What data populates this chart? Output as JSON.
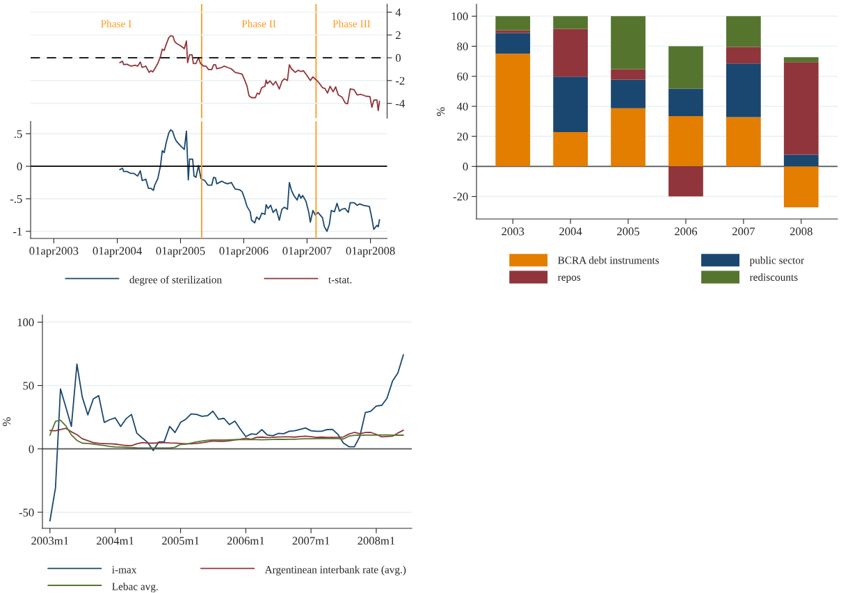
{
  "chart_data": [
    {
      "type": "line",
      "xlim": [
        "2002-11-18",
        "2008-07-06"
      ],
      "y2lim": [
        -5.3,
        4.7
      ],
      "y2ticks": [
        -4,
        -2,
        0,
        2,
        4
      ],
      "tick_labels": "y2",
      "grid": "y",
      "legend": "bottom",
      "ref_lines": [
        {
          "axis": "y2",
          "value": 0,
          "color": "#000000",
          "line_style": "dashed"
        },
        {
          "axis": "x",
          "value": "2005-08-01",
          "color": "#ff9a1f"
        },
        {
          "axis": "x",
          "value": "2007-05-23",
          "color": "#ff9a1f"
        }
      ],
      "annotations": [
        "Phase I",
        "Phase II",
        "Phase III"
      ],
      "series": [
        {
          "name": "t-stat.",
          "color": "#90353b",
          "axis": "y2",
          "x": [
            "2004-04-16",
            "2004-05-01",
            "2004-05-08",
            "2004-05-27",
            "2004-06-18",
            "2004-07-14",
            "2004-07-28",
            "2004-08-12",
            "2004-08-23",
            "2004-09-13",
            "2004-10-02",
            "2004-10-12",
            "2004-10-23",
            "2004-11-03",
            "2004-11-21",
            "2004-12-06",
            "2004-12-17",
            "2004-12-28",
            "2005-01-08",
            "2005-01-23",
            "2005-02-03",
            "2005-02-17",
            "2005-02-25",
            "2005-03-07",
            "2005-04-02",
            "2005-04-23",
            "2005-05-05",
            "2005-05-12",
            "2005-05-23",
            "2005-06-07",
            "2005-06-14",
            "2005-06-29",
            "2005-07-14",
            "2005-07-25",
            "2005-08-12",
            "2005-08-26",
            "2005-09-10",
            "2005-09-28",
            "2005-10-09",
            "2005-10-20",
            "2005-10-27",
            "2005-11-25",
            "2005-12-09",
            "2005-12-28",
            "2006-01-19",
            "2006-02-10",
            "2006-03-07",
            "2006-03-22",
            "2006-04-05",
            "2006-04-20",
            "2006-05-01",
            "2006-05-16",
            "2006-06-07",
            "2006-06-18",
            "2006-06-29",
            "2006-07-14",
            "2006-08-01",
            "2006-08-08",
            "2006-08-15",
            "2006-08-30",
            "2006-09-17",
            "2006-10-02",
            "2006-10-16",
            "2006-10-23",
            "2006-11-07",
            "2006-11-21",
            "2006-12-09",
            "2006-12-20",
            "2007-01-01",
            "2007-01-23",
            "2007-02-10",
            "2007-02-25",
            "2007-03-11",
            "2007-03-26",
            "2007-04-20",
            "2007-05-05",
            "2007-05-27",
            "2007-06-10",
            "2007-06-29",
            "2007-07-14",
            "2007-07-28",
            "2007-08-12",
            "2007-08-30",
            "2007-09-13",
            "2007-09-28",
            "2007-10-20",
            "2007-11-07",
            "2007-11-21",
            "2007-12-06",
            "2007-12-28",
            "2008-01-15",
            "2008-02-06",
            "2008-03-07",
            "2008-03-29",
            "2008-04-09",
            "2008-04-20",
            "2008-05-08",
            "2008-05-16",
            "2008-05-23"
          ],
          "values": [
            -0.43,
            -0.3,
            -0.6,
            -0.57,
            -0.73,
            -0.66,
            -0.73,
            -0.38,
            -0.85,
            -0.73,
            -1.28,
            -1.13,
            -1.25,
            -0.97,
            -0.5,
            0.1,
            0.76,
            0.64,
            1.16,
            1.75,
            1.94,
            1.87,
            1.47,
            1.28,
            1.04,
            0.8,
            1.47,
            -0.43,
            0.26,
            0.26,
            -0.5,
            -0.5,
            0.02,
            -0.5,
            -0.73,
            -0.73,
            -1.04,
            -1.04,
            -0.61,
            -0.61,
            -0.97,
            -0.85,
            -0.73,
            -0.85,
            -0.97,
            -1.28,
            -1.37,
            -1.44,
            -1.91,
            -2.5,
            -3.33,
            -3.5,
            -3.5,
            -3.1,
            -3.2,
            -2.62,
            -2.5,
            -1.96,
            -2.27,
            -2.03,
            -2.39,
            -2.08,
            -2.5,
            -2.74,
            -2.08,
            -1.84,
            -1.99,
            -0.61,
            -0.97,
            -1.28,
            -1.09,
            -1.21,
            -1.13,
            -1.44,
            -1.99,
            -1.68,
            -1.99,
            -2.22,
            -2.62,
            -2.7,
            -3.1,
            -2.5,
            -2.98,
            -2.55,
            -3.26,
            -3.45,
            -3.97,
            -4.04,
            -2.74,
            -2.79,
            -3.26,
            -3.21,
            -3.38,
            -3.4,
            -4.35,
            -3.73,
            -3.69,
            -4.63,
            -3.81
          ]
        }
      ]
    },
    {
      "type": "line",
      "xlim": [
        "2002-11-18",
        "2008-07-06"
      ],
      "xticks": [
        {
          "value": "2003-04-01",
          "label": "01apr2003"
        },
        {
          "value": "2004-04-01",
          "label": "01apr2004"
        },
        {
          "value": "2005-04-01",
          "label": "01apr2005"
        },
        {
          "value": "2006-04-01",
          "label": "01apr2006"
        },
        {
          "value": "2007-04-01",
          "label": "01apr2007"
        },
        {
          "value": "2008-04-01",
          "label": "01apr2008"
        }
      ],
      "ylim": [
        -1.11,
        0.69
      ],
      "yticks": [
        {
          "value": -1,
          "label": "-1"
        },
        {
          "value": -0.5,
          "label": "-.5"
        },
        {
          "value": 0,
          "label": "0"
        },
        {
          "value": 0.5,
          "label": ".5"
        }
      ],
      "grid": "y",
      "legend": "bottom",
      "ref_lines": [
        {
          "axis": "y",
          "value": 0,
          "color": "#000000"
        },
        {
          "axis": "x",
          "value": "2005-08-01",
          "color": "#ff9a1f"
        },
        {
          "axis": "x",
          "value": "2007-05-23",
          "color": "#ff9a1f"
        }
      ],
      "series": [
        {
          "name": "degree of sterilization",
          "color": "#1a476f",
          "x": [
            "2004-04-16",
            "2004-05-01",
            "2004-05-08",
            "2004-05-27",
            "2004-06-18",
            "2004-07-06",
            "2004-07-28",
            "2004-08-12",
            "2004-08-23",
            "2004-09-13",
            "2004-09-28",
            "2004-10-12",
            "2004-10-27",
            "2004-11-03",
            "2004-11-21",
            "2004-12-06",
            "2004-12-17",
            "2004-12-28",
            "2005-01-08",
            "2005-01-23",
            "2005-02-03",
            "2005-02-14",
            "2005-02-25",
            "2005-03-07",
            "2005-04-02",
            "2005-04-23",
            "2005-05-05",
            "2005-05-16",
            "2005-05-23",
            "2005-06-10",
            "2005-06-18",
            "2005-06-29",
            "2005-07-14",
            "2005-07-28",
            "2005-08-19",
            "2005-09-06",
            "2005-09-28",
            "2005-10-09",
            "2005-10-20",
            "2005-10-27",
            "2005-11-25",
            "2005-12-09",
            "2005-12-28",
            "2006-01-19",
            "2006-02-10",
            "2006-03-07",
            "2006-03-22",
            "2006-04-05",
            "2006-04-20",
            "2006-05-08",
            "2006-05-16",
            "2006-06-03",
            "2006-06-14",
            "2006-06-29",
            "2006-07-14",
            "2006-08-01",
            "2006-08-08",
            "2006-08-19",
            "2006-09-03",
            "2006-09-17",
            "2006-10-05",
            "2006-10-23",
            "2006-11-07",
            "2006-11-21",
            "2006-12-09",
            "2006-12-20",
            "2007-01-01",
            "2007-01-15",
            "2007-02-03",
            "2007-02-14",
            "2007-02-25",
            "2007-03-07",
            "2007-03-26",
            "2007-04-12",
            "2007-04-20",
            "2007-05-05",
            "2007-05-19",
            "2007-06-03",
            "2007-06-29",
            "2007-07-10",
            "2007-07-25",
            "2007-08-08",
            "2007-08-19",
            "2007-09-06",
            "2007-09-21",
            "2007-10-05",
            "2007-10-20",
            "2007-11-07",
            "2007-11-25",
            "2007-12-06",
            "2007-12-28",
            "2008-01-15",
            "2008-01-30",
            "2008-02-21",
            "2008-03-26",
            "2008-04-09",
            "2008-04-20",
            "2008-05-08",
            "2008-05-16",
            "2008-05-23"
          ],
          "values": [
            -0.05,
            -0.03,
            -0.08,
            -0.08,
            -0.11,
            -0.11,
            -0.15,
            -0.07,
            -0.22,
            -0.2,
            -0.34,
            -0.34,
            -0.37,
            -0.29,
            -0.19,
            0.0,
            0.24,
            0.21,
            0.36,
            0.51,
            0.56,
            0.54,
            0.45,
            0.39,
            0.31,
            0.26,
            0.54,
            -0.21,
            0.11,
            0.11,
            -0.15,
            -0.17,
            0.01,
            -0.19,
            -0.22,
            -0.29,
            -0.29,
            -0.17,
            -0.18,
            -0.27,
            -0.23,
            -0.25,
            -0.27,
            -0.25,
            -0.35,
            -0.36,
            -0.39,
            -0.49,
            -0.62,
            -0.7,
            -0.83,
            -0.87,
            -0.78,
            -0.82,
            -0.72,
            -0.74,
            -0.59,
            -0.65,
            -0.6,
            -0.71,
            -0.66,
            -0.83,
            -0.66,
            -0.63,
            -0.66,
            -0.25,
            -0.37,
            -0.45,
            -0.52,
            -0.43,
            -0.49,
            -0.45,
            -0.54,
            -0.72,
            -0.86,
            -0.68,
            -0.75,
            -0.71,
            -0.79,
            -0.93,
            -1.0,
            -0.89,
            -0.68,
            -0.7,
            -0.57,
            -0.69,
            -0.66,
            -0.65,
            -0.71,
            -0.56,
            -0.56,
            -0.6,
            -0.58,
            -0.6,
            -0.62,
            -0.8,
            -0.97,
            -0.91,
            -0.93,
            -0.82
          ]
        }
      ]
    },
    {
      "type": "bar",
      "stacked": true,
      "categories": [
        "2003",
        "2004",
        "2005",
        "2006",
        "2007",
        "2008"
      ],
      "ylabel": "%",
      "ylim": [
        -35,
        108
      ],
      "yticks": [
        -20,
        0,
        20,
        40,
        60,
        80,
        100
      ],
      "grid": "y",
      "legend": "bottom",
      "ref_lines": [
        {
          "axis": "y",
          "value": 0,
          "color": "#555555"
        }
      ],
      "series": [
        {
          "name": "BCRA debt instruments",
          "color": "#e37e00",
          "values": [
            75.0,
            22.8,
            38.7,
            33.5,
            32.8,
            -27.3
          ]
        },
        {
          "name": "public sector",
          "color": "#1a476f",
          "values": [
            13.8,
            36.9,
            19.1,
            18.2,
            35.8,
            7.8
          ]
        },
        {
          "name": "repos",
          "color": "#90353b",
          "values": [
            1.8,
            31.9,
            6.9,
            -20.0,
            10.9,
            61.7
          ]
        },
        {
          "name": "rediscounts",
          "color": "#55752f",
          "values": [
            9.4,
            8.4,
            35.3,
            28.3,
            20.5,
            3.2
          ]
        }
      ]
    },
    {
      "type": "line",
      "ylabel": "%",
      "xlim": [
        "2002-11-20",
        "2008-07-18"
      ],
      "xticks": [
        {
          "value": "2003-01",
          "label": "2003m1"
        },
        {
          "value": "2004-01",
          "label": "2004m1"
        },
        {
          "value": "2005-01",
          "label": "2005m1"
        },
        {
          "value": "2006-01",
          "label": "2006m1"
        },
        {
          "value": "2007-01",
          "label": "2007m1"
        },
        {
          "value": "2008-01",
          "label": "2008m1"
        }
      ],
      "ylim": [
        -62.7,
        105.7
      ],
      "yticks": [
        -50,
        0,
        50,
        100
      ],
      "grid": "y",
      "legend": "bottom",
      "ref_lines": [
        {
          "axis": "y",
          "value": 0,
          "color": "#555555"
        }
      ],
      "x": [
        "2003-01",
        "2003-02",
        "2003-03",
        "2003-04",
        "2003-05",
        "2003-06",
        "2003-07",
        "2003-08",
        "2003-09",
        "2003-10",
        "2003-11",
        "2003-12",
        "2004-01",
        "2004-02",
        "2004-03",
        "2004-04",
        "2004-05",
        "2004-06",
        "2004-07",
        "2004-08",
        "2004-09",
        "2004-10",
        "2004-11",
        "2004-12",
        "2005-01",
        "2005-02",
        "2005-03",
        "2005-04",
        "2005-05",
        "2005-06",
        "2005-07",
        "2005-08",
        "2005-09",
        "2005-10",
        "2005-11",
        "2005-12",
        "2006-01",
        "2006-02",
        "2006-03",
        "2006-04",
        "2006-05",
        "2006-06",
        "2006-07",
        "2006-08",
        "2006-09",
        "2006-10",
        "2006-11",
        "2006-12",
        "2007-01",
        "2007-02",
        "2007-03",
        "2007-04",
        "2007-05",
        "2007-06",
        "2007-07",
        "2007-08",
        "2007-09",
        "2007-10",
        "2007-11",
        "2007-12",
        "2008-01",
        "2008-02",
        "2008-03",
        "2008-04",
        "2008-05",
        "2008-06"
      ],
      "series": [
        {
          "name": "i-max",
          "color": "#1a476f",
          "values": [
            -56.8,
            -30.8,
            47.3,
            32.5,
            17.7,
            66.9,
            40.9,
            26.8,
            39.5,
            42.0,
            20.9,
            23.0,
            24.5,
            17.7,
            23.6,
            27.2,
            12.4,
            8.6,
            5.1,
            -1.3,
            5.5,
            5.5,
            17.7,
            12.9,
            20.9,
            23.6,
            27.6,
            27.2,
            25.7,
            26.2,
            29.7,
            23.4,
            24.1,
            19.2,
            21.9,
            15.6,
            9.7,
            11.8,
            11.4,
            15.2,
            11.0,
            10.3,
            12.2,
            12.0,
            13.9,
            14.3,
            15.4,
            16.5,
            14.3,
            13.9,
            13.9,
            15.2,
            15.4,
            11.4,
            4.6,
            1.7,
            1.7,
            9.7,
            28.7,
            29.7,
            33.8,
            34.4,
            39.9,
            53.4,
            59.9,
            74.3
          ]
        },
        {
          "name": "Argentinean interbank rate (avg.)",
          "color": "#90353b",
          "values": [
            14.5,
            14.3,
            15.3,
            16.2,
            13.5,
            11.2,
            8,
            6.5,
            5,
            4.4,
            4.2,
            4,
            3.8,
            3.2,
            2.7,
            2.5,
            4,
            5,
            4.6,
            4.5,
            4.8,
            5,
            4.7,
            4.6,
            4.3,
            4,
            4,
            4.3,
            4.8,
            5.5,
            6.2,
            6,
            6,
            6.3,
            7,
            7.6,
            8.4,
            7.6,
            9.1,
            9.3,
            8.9,
            9.1,
            9.4,
            9.5,
            9.5,
            9.3,
            9.8,
            10,
            9.6,
            9.1,
            9.3,
            9.1,
            9.1,
            9.2,
            9.4,
            11.7,
            13,
            12,
            12.9,
            13,
            11.5,
            9.5,
            9.8,
            10,
            12.5,
            14.7
          ]
        },
        {
          "name": "Lebac avg.",
          "color": "#55752f",
          "values": [
            10.8,
            21.7,
            22.6,
            18,
            11,
            6.7,
            4.5,
            4.3,
            3.8,
            3.2,
            2.6,
            2,
            1.6,
            1.4,
            1.2,
            1,
            0.8,
            0.7,
            0.7,
            0.7,
            0.7,
            0.7,
            0.7,
            1.3,
            3.5,
            3.8,
            4.6,
            5.5,
            6.2,
            6.8,
            7,
            7,
            7,
            7.1,
            7.3,
            7.3,
            7.3,
            7.3,
            7.3,
            7.2,
            7.3,
            7.4,
            7.5,
            7.5,
            7.6,
            7.6,
            7.9,
            8,
            8,
            8.1,
            8.2,
            8.2,
            8.2,
            8.1,
            7.8,
            10,
            10.7,
            10.8,
            10.9,
            10.9,
            10.9,
            11,
            11,
            10.9,
            10.8,
            10.8
          ]
        }
      ]
    }
  ]
}
